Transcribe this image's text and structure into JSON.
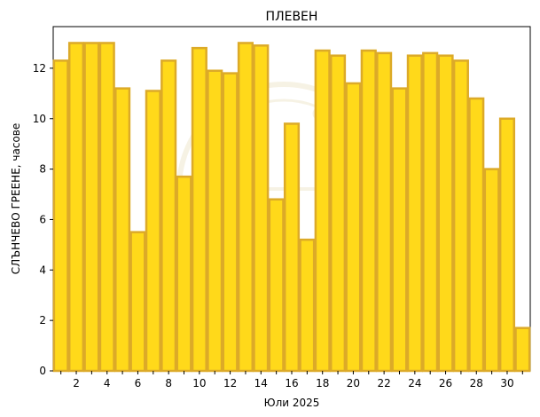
{
  "chart_data": {
    "type": "bar",
    "title": "ПЛЕВЕН",
    "xlabel": "Юли  2025",
    "ylabel": "СЛЪНЧЕВО ГРЕЕНЕ,  часове",
    "x": [
      1,
      2,
      3,
      4,
      5,
      6,
      7,
      8,
      9,
      10,
      11,
      12,
      13,
      14,
      15,
      16,
      17,
      18,
      19,
      20,
      21,
      22,
      23,
      24,
      25,
      26,
      27,
      28,
      29,
      30,
      31
    ],
    "values": [
      12.3,
      13.0,
      13.0,
      13.0,
      11.2,
      5.5,
      11.1,
      12.3,
      7.7,
      12.8,
      11.9,
      11.8,
      13.0,
      12.9,
      6.8,
      9.8,
      5.2,
      12.7,
      12.5,
      11.4,
      12.7,
      12.6,
      11.2,
      12.5,
      12.6,
      12.5,
      12.3,
      10.8,
      8.0,
      10.0,
      1.7
    ],
    "x_tick_labels": [
      "2",
      "4",
      "6",
      "8",
      "10",
      "12",
      "14",
      "16",
      "18",
      "20",
      "22",
      "24",
      "26",
      "28",
      "30"
    ],
    "y_ticks": [
      0,
      2,
      4,
      6,
      8,
      10,
      12
    ],
    "ylim": [
      0,
      13.65
    ],
    "xlim": [
      0.5,
      31.5
    ],
    "grid": false,
    "colors": {
      "bar_fill": "#ffd91a",
      "bar_edge": "#dcaa28"
    }
  }
}
